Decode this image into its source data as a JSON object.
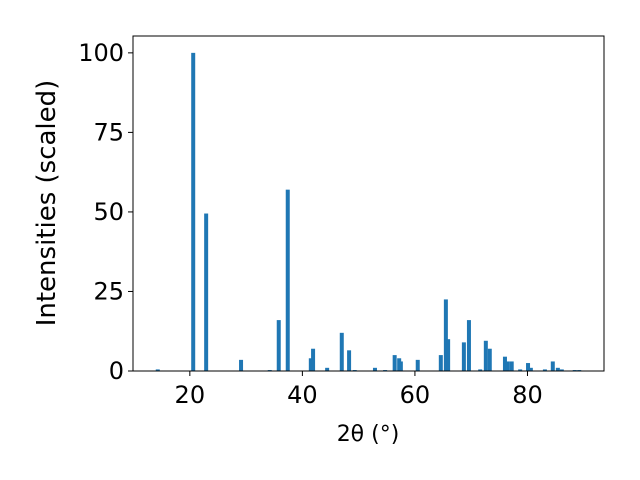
{
  "chart_data": {
    "type": "bar",
    "xlabel": "2θ (°)",
    "ylabel": "Intensities (scaled)",
    "color": "#1f77b4",
    "x": [
      14.3,
      20.6,
      22.9,
      29.1,
      34.2,
      35.8,
      37.4,
      41.5,
      41.9,
      44.4,
      47.0,
      48.3,
      49.3,
      52.9,
      54.7,
      56.4,
      57.2,
      57.5,
      60.5,
      64.6,
      65.5,
      65.9,
      68.7,
      69.6,
      71.6,
      72.6,
      73.3,
      76.0,
      76.5,
      77.2,
      78.7,
      80.1,
      80.6,
      83.1,
      84.5,
      85.4,
      86.1,
      88.4,
      89.2
    ],
    "values": [
      0.5,
      100,
      49.5,
      3.5,
      0.3,
      16,
      57,
      4,
      7,
      1,
      12,
      6.5,
      0.3,
      1,
      0.3,
      5,
      4,
      3,
      3.5,
      5,
      22.5,
      10,
      9,
      16,
      0.5,
      9.5,
      7,
      4.5,
      3,
      3,
      0.5,
      2.5,
      1,
      0.5,
      3,
      1,
      0.5,
      0.3,
      0.3
    ],
    "xlim": [
      9.9,
      93.6
    ],
    "ylim": [
      0,
      105.3
    ],
    "xticks": [
      20,
      40,
      60,
      80
    ],
    "yticks": [
      0,
      25,
      50,
      75,
      100
    ]
  }
}
